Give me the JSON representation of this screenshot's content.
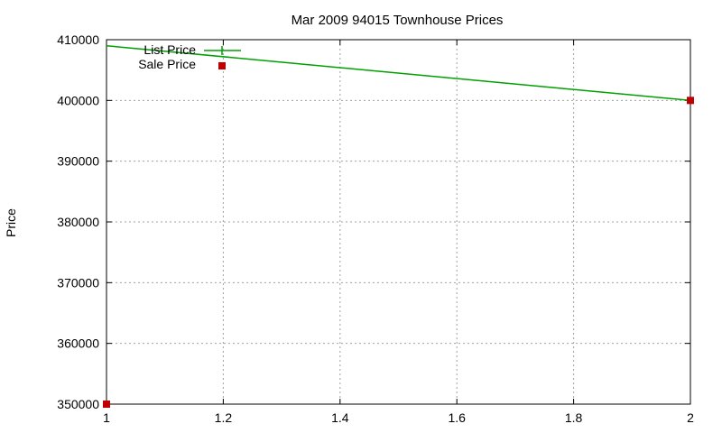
{
  "chart_data": {
    "type": "line",
    "title": "Mar 2009 94015 Townhouse Prices",
    "xlabel": "",
    "ylabel": "Price",
    "xlim": [
      1,
      2
    ],
    "ylim": [
      350000,
      410000
    ],
    "xticks": [
      1,
      1.2,
      1.4,
      1.6,
      1.8,
      2
    ],
    "xtick_labels": [
      "1",
      "1.2",
      "1.4",
      "1.6",
      "1.8",
      "2"
    ],
    "yticks": [
      350000,
      360000,
      370000,
      380000,
      390000,
      400000,
      410000
    ],
    "ytick_labels": [
      "350000",
      "360000",
      "370000",
      "380000",
      "390000",
      "400000",
      "410000"
    ],
    "grid": true,
    "legend_position": "top-left",
    "series": [
      {
        "name": "List Price",
        "style": "line",
        "color": "#00a000",
        "x": [
          1,
          2
        ],
        "y": [
          409000,
          400000
        ]
      },
      {
        "name": "Sale Price",
        "style": "points",
        "color": "#c00000",
        "x": [
          1,
          2
        ],
        "y": [
          350000,
          400000
        ]
      }
    ]
  }
}
